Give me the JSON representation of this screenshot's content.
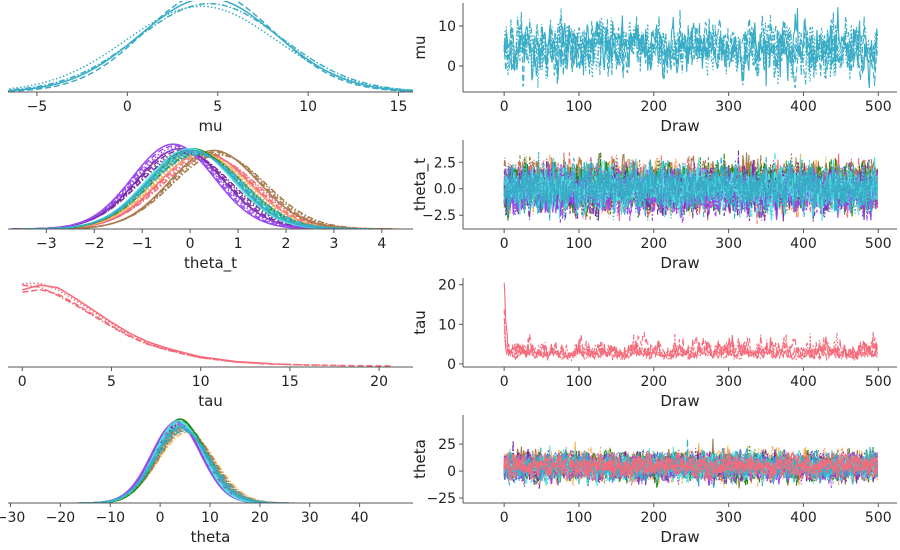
{
  "figure": "trace plot",
  "chain_linestyles": [
    "solid",
    "dashed",
    "dotted",
    "dashdot"
  ],
  "school_colors": [
    "#f66b7a",
    "#f7b25c",
    "#a87c4e",
    "#1f8a0f",
    "#7b2ea3",
    "#9b4af0",
    "#50e0e0",
    "#38acc6"
  ],
  "chart_data": [
    {
      "type": "line",
      "kind": "kde",
      "row": 0,
      "xlabel": "mu",
      "xlim": [
        -6.6,
        15.8
      ],
      "xticks": [
        -5,
        0,
        5,
        10,
        15
      ],
      "tick_labels": [
        "−5",
        "0",
        "5",
        "10",
        "15"
      ],
      "ylim": [
        0,
        0.1
      ],
      "series": [
        {
          "color": "#38acc6",
          "chain": 0,
          "mean": 4.7,
          "sd": 3.9
        },
        {
          "color": "#38acc6",
          "chain": 1,
          "mean": 4.6,
          "sd": 3.6
        },
        {
          "color": "#38acc6",
          "chain": 2,
          "mean": 4.0,
          "sd": 4.1
        },
        {
          "color": "#38acc6",
          "chain": 3,
          "mean": 4.3,
          "sd": 3.9
        }
      ]
    },
    {
      "type": "line",
      "kind": "trace",
      "row": 0,
      "xlabel": "Draw",
      "ylabel": "mu",
      "xlim": [
        -55,
        525
      ],
      "ylim": [
        -6.5,
        15.75
      ],
      "xticks": [
        0,
        100,
        200,
        300,
        400,
        500
      ],
      "xtick_labels": [
        "0",
        "100",
        "200",
        "300",
        "400",
        "500"
      ],
      "yticks": [
        0,
        10
      ],
      "ytick_labels": [
        "0",
        "10"
      ],
      "draws": 500,
      "series": [
        {
          "color": "#38acc6",
          "mean": 4.4,
          "sd": 3.3,
          "min": -5.5,
          "max": 14.8
        }
      ]
    },
    {
      "type": "line",
      "kind": "kde",
      "row": 1,
      "xlabel": "theta_t",
      "xlim": [
        -3.8,
        4.65
      ],
      "xticks": [
        -3,
        -2,
        -1,
        0,
        1,
        2,
        3,
        4
      ],
      "tick_labels": [
        "−3",
        "−2",
        "−1",
        "0",
        "1",
        "2",
        "3",
        "4"
      ],
      "ylim": [
        0,
        0.49
      ],
      "series": [
        {
          "color": "#f66b7a",
          "mean": 0.35,
          "sd": 0.98
        },
        {
          "color": "#f7b25c",
          "mean": 0.2,
          "sd": 0.95
        },
        {
          "color": "#a87c4e",
          "mean": 0.55,
          "sd": 0.95
        },
        {
          "color": "#1f8a0f",
          "mean": 0.1,
          "sd": 0.93
        },
        {
          "color": "#7b2ea3",
          "mean": -0.15,
          "sd": 0.93
        },
        {
          "color": "#9b4af0",
          "mean": -0.3,
          "sd": 0.88
        },
        {
          "color": "#50e0e0",
          "mean": 0.05,
          "sd": 0.93
        },
        {
          "color": "#38acc6",
          "mean": 0.1,
          "sd": 0.95
        }
      ]
    },
    {
      "type": "line",
      "kind": "trace",
      "row": 1,
      "xlabel": "Draw",
      "ylabel": "theta_t",
      "xlim": [
        -55,
        525
      ],
      "ylim": [
        -3.8,
        4.6
      ],
      "xticks": [
        0,
        100,
        200,
        300,
        400,
        500
      ],
      "xtick_labels": [
        "0",
        "100",
        "200",
        "300",
        "400",
        "500"
      ],
      "yticks": [
        -2.5,
        0,
        2.5
      ],
      "ytick_labels": [
        "−2.5",
        "0.0",
        "2.5"
      ],
      "draws": 500,
      "series": [
        {
          "color": "#f66b7a",
          "mean": 0.35,
          "sd": 1.0,
          "min": -3.3,
          "max": 4.2
        },
        {
          "color": "#f7b25c",
          "mean": 0.2,
          "sd": 1.0,
          "min": -3.0,
          "max": 3.3
        },
        {
          "color": "#a87c4e",
          "mean": 0.55,
          "sd": 1.0,
          "min": -3.0,
          "max": 3.4
        },
        {
          "color": "#1f8a0f",
          "mean": 0.1,
          "sd": 1.0,
          "min": -3.0,
          "max": 3.4
        },
        {
          "color": "#7b2ea3",
          "mean": -0.15,
          "sd": 1.0,
          "min": -3.1,
          "max": 3.6
        },
        {
          "color": "#9b4af0",
          "mean": -0.3,
          "sd": 1.0,
          "min": -3.2,
          "max": 3.1
        },
        {
          "color": "#50e0e0",
          "mean": 0.05,
          "sd": 1.0,
          "min": -3.3,
          "max": 3.7
        },
        {
          "color": "#38acc6",
          "mean": 0.1,
          "sd": 1.0,
          "min": -3.0,
          "max": 3.5
        }
      ]
    },
    {
      "type": "line",
      "kind": "kde",
      "row": 2,
      "xlabel": "tau",
      "xlim": [
        -0.8,
        21.9
      ],
      "xticks": [
        0,
        5,
        10,
        15,
        20
      ],
      "tick_labels": [
        "0",
        "5",
        "10",
        "15",
        "20"
      ],
      "ylim": [
        0,
        0.165
      ],
      "curve": [
        [
          0,
          0.155
        ],
        [
          1,
          0.158
        ],
        [
          2,
          0.147
        ],
        [
          3,
          0.127
        ],
        [
          4,
          0.105
        ],
        [
          5,
          0.083
        ],
        [
          6,
          0.063
        ],
        [
          7,
          0.047
        ],
        [
          8,
          0.036
        ],
        [
          9,
          0.027
        ],
        [
          10,
          0.019
        ],
        [
          12,
          0.01
        ],
        [
          14,
          0.006
        ],
        [
          16,
          0.004
        ],
        [
          18,
          0.003
        ],
        [
          20.8,
          0.002
        ]
      ],
      "series": [
        {
          "color": "#f66b7a",
          "chain": 0,
          "scale": 1.0,
          "end": 15.6
        },
        {
          "color": "#f66b7a",
          "chain": 1,
          "scale": 0.92,
          "end": 20.8
        },
        {
          "color": "#f66b7a",
          "chain": 2,
          "scale": 0.97,
          "end": 20.5
        },
        {
          "color": "#f66b7a",
          "chain": 3,
          "scale": 0.9,
          "end": 17
        }
      ]
    },
    {
      "type": "line",
      "kind": "trace",
      "row": 2,
      "xlabel": "Draw",
      "ylabel": "tau",
      "xlim": [
        -55,
        525
      ],
      "ylim": [
        -0.8,
        21.7
      ],
      "xticks": [
        0,
        100,
        200,
        300,
        400,
        500
      ],
      "xtick_labels": [
        "0",
        "100",
        "200",
        "300",
        "400",
        "500"
      ],
      "yticks": [
        0,
        10,
        20
      ],
      "ytick_labels": [
        "0",
        "10",
        "20"
      ],
      "draws": 500,
      "series": [
        {
          "color": "#f66b7a",
          "mean": 3.6,
          "sd": 3.0,
          "min": 0.1,
          "max": 20.5
        }
      ]
    },
    {
      "type": "line",
      "kind": "kde",
      "row": 3,
      "xlabel": "theta",
      "xlim": [
        -30.5,
        50.7
      ],
      "xticks": [
        -30,
        -20,
        -10,
        0,
        10,
        20,
        30,
        40
      ],
      "tick_labels": [
        "−30",
        "−20",
        "−10",
        "0",
        "10",
        "20",
        "30",
        "40"
      ],
      "ylim": [
        0,
        0.088
      ],
      "series": [
        {
          "color": "#f66b7a",
          "mean": 4.5,
          "sd": 5.2
        },
        {
          "color": "#f7b25c",
          "mean": 5.0,
          "sd": 5.5
        },
        {
          "color": "#a87c4e",
          "mean": 4.8,
          "sd": 5.3
        },
        {
          "color": "#1f8a0f",
          "mean": 4.3,
          "sd": 4.9
        },
        {
          "color": "#7b2ea3",
          "mean": 3.8,
          "sd": 5.0
        },
        {
          "color": "#9b4af0",
          "mean": 3.5,
          "sd": 5.1
        },
        {
          "color": "#50e0e0",
          "mean": 4.0,
          "sd": 5.0
        },
        {
          "color": "#38acc6",
          "mean": 4.4,
          "sd": 5.4
        }
      ]
    },
    {
      "type": "line",
      "kind": "trace",
      "row": 3,
      "xlabel": "Draw",
      "ylabel": "theta",
      "xlim": [
        -55,
        525
      ],
      "ylim": [
        -29.6,
        52
      ],
      "xticks": [
        0,
        100,
        200,
        300,
        400,
        500
      ],
      "xtick_labels": [
        "0",
        "100",
        "200",
        "300",
        "400",
        "500"
      ],
      "yticks": [
        -25,
        0,
        25
      ],
      "ytick_labels": [
        "−25",
        "0",
        "25"
      ],
      "draws": 500,
      "series": [
        {
          "color": "#f7b25c",
          "mean": 5.0,
          "sd": 6.5,
          "min": -22,
          "max": 42
        },
        {
          "color": "#a87c4e",
          "mean": 4.8,
          "sd": 6.0,
          "min": -20,
          "max": 30
        },
        {
          "color": "#1f8a0f",
          "mean": 4.3,
          "sd": 5.8,
          "min": -26,
          "max": 34
        },
        {
          "color": "#7b2ea3",
          "mean": 3.8,
          "sd": 5.8,
          "min": -20,
          "max": 30
        },
        {
          "color": "#9b4af0",
          "mean": 3.5,
          "sd": 5.8,
          "min": -22,
          "max": 30
        },
        {
          "color": "#50e0e0",
          "mean": 4.0,
          "sd": 5.8,
          "min": -22,
          "max": 30
        },
        {
          "color": "#38acc6",
          "mean": 4.4,
          "sd": 6.0,
          "min": -20,
          "max": 46
        },
        {
          "color": "#f66b7a",
          "mean": 4.5,
          "sd": 5.2,
          "min": -18,
          "max": 30
        }
      ]
    }
  ]
}
